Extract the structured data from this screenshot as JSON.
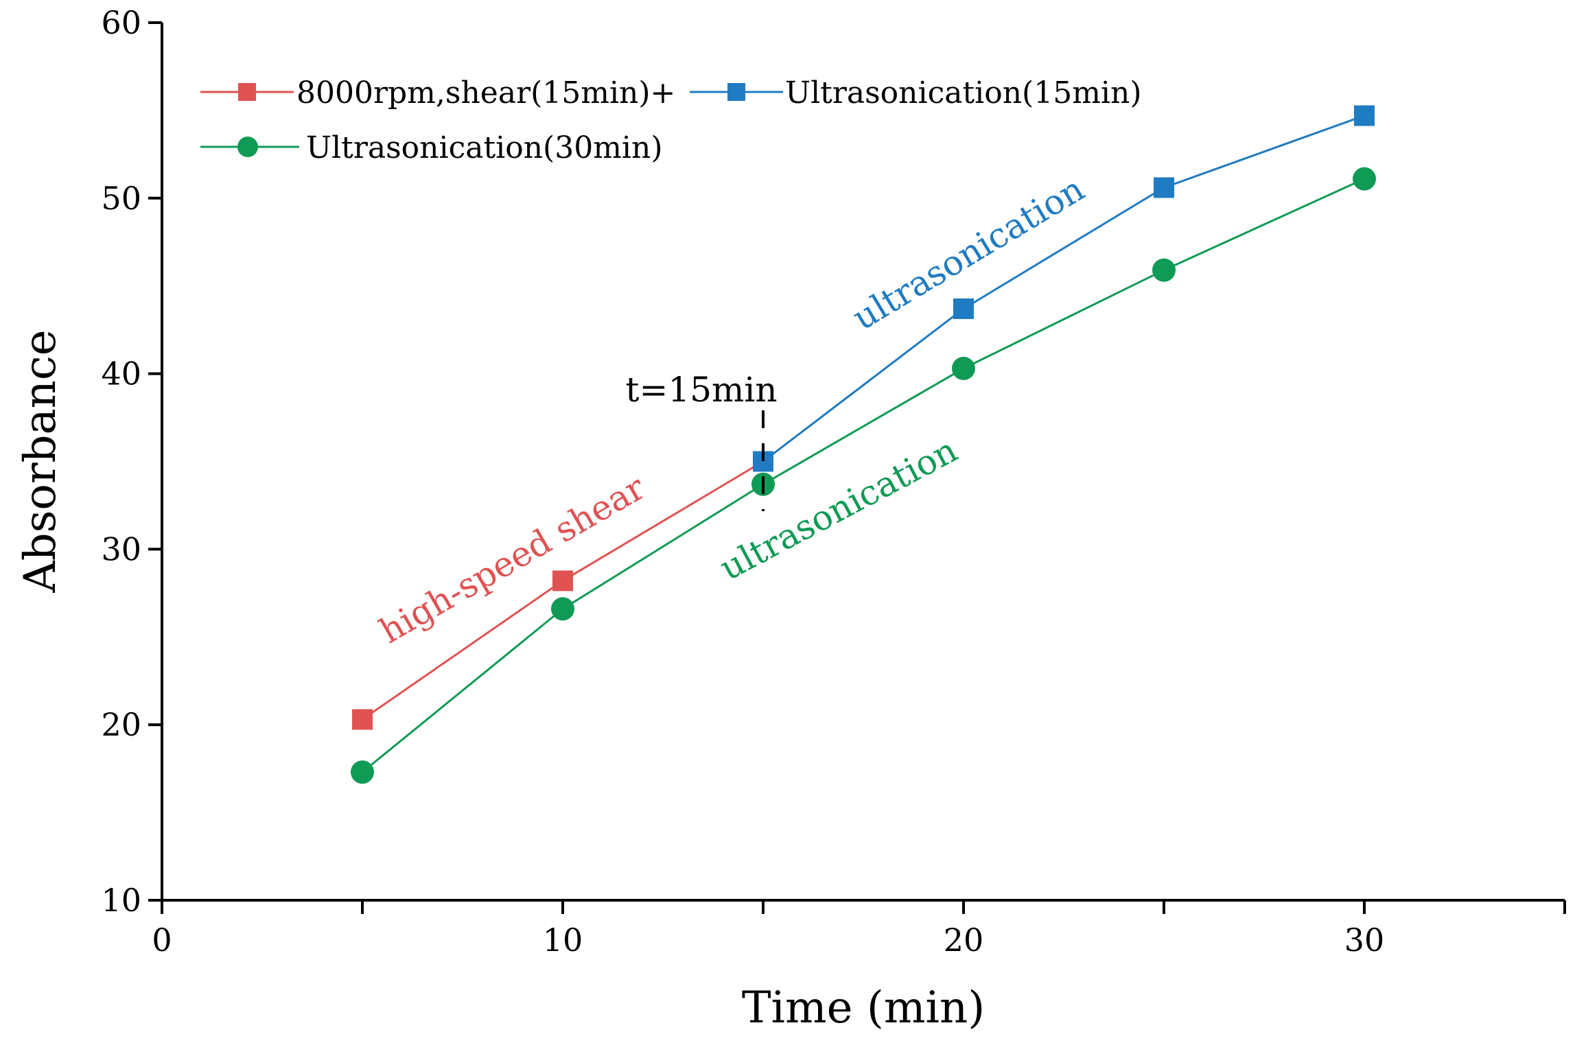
{
  "chart_data": {
    "type": "line",
    "xlabel": "Time (min)",
    "ylabel": "Absorbance",
    "xlim": [
      0,
      35
    ],
    "ylim": [
      10,
      60
    ],
    "xticks": [
      0,
      10,
      20,
      30
    ],
    "xticks_minor": [
      5,
      15,
      25,
      35
    ],
    "yticks": [
      10,
      20,
      30,
      40,
      50,
      60
    ],
    "grid": false,
    "legend_position": "top-left",
    "series": [
      {
        "name": "8000rpm,shear(15min)+",
        "color": "#e05252",
        "marker": "square",
        "x": [
          5,
          10,
          15
        ],
        "y": [
          20.3,
          28.2,
          35.0
        ]
      },
      {
        "name": "Ultrasonication(15min)",
        "color": "#1f7bc2",
        "marker": "square",
        "x": [
          15,
          20,
          25,
          30
        ],
        "y": [
          35.0,
          43.7,
          50.6,
          54.7
        ]
      },
      {
        "name": "Ultrasonication(30min)",
        "color": "#0f9a55",
        "marker": "circle",
        "x": [
          5,
          10,
          15,
          20,
          25,
          30
        ],
        "y": [
          17.3,
          26.6,
          33.7,
          40.3,
          45.9,
          51.1
        ]
      }
    ],
    "annotations": {
      "shear": {
        "text": "high-speed shear",
        "color": "#e05252"
      },
      "ultra_blue": {
        "text": "ultrasonication",
        "color": "#1f7bc2"
      },
      "ultra_green": {
        "text": "ultrasonication",
        "color": "#0f9a55"
      },
      "marker_line": {
        "text": "t=15min",
        "x": 15
      }
    }
  }
}
